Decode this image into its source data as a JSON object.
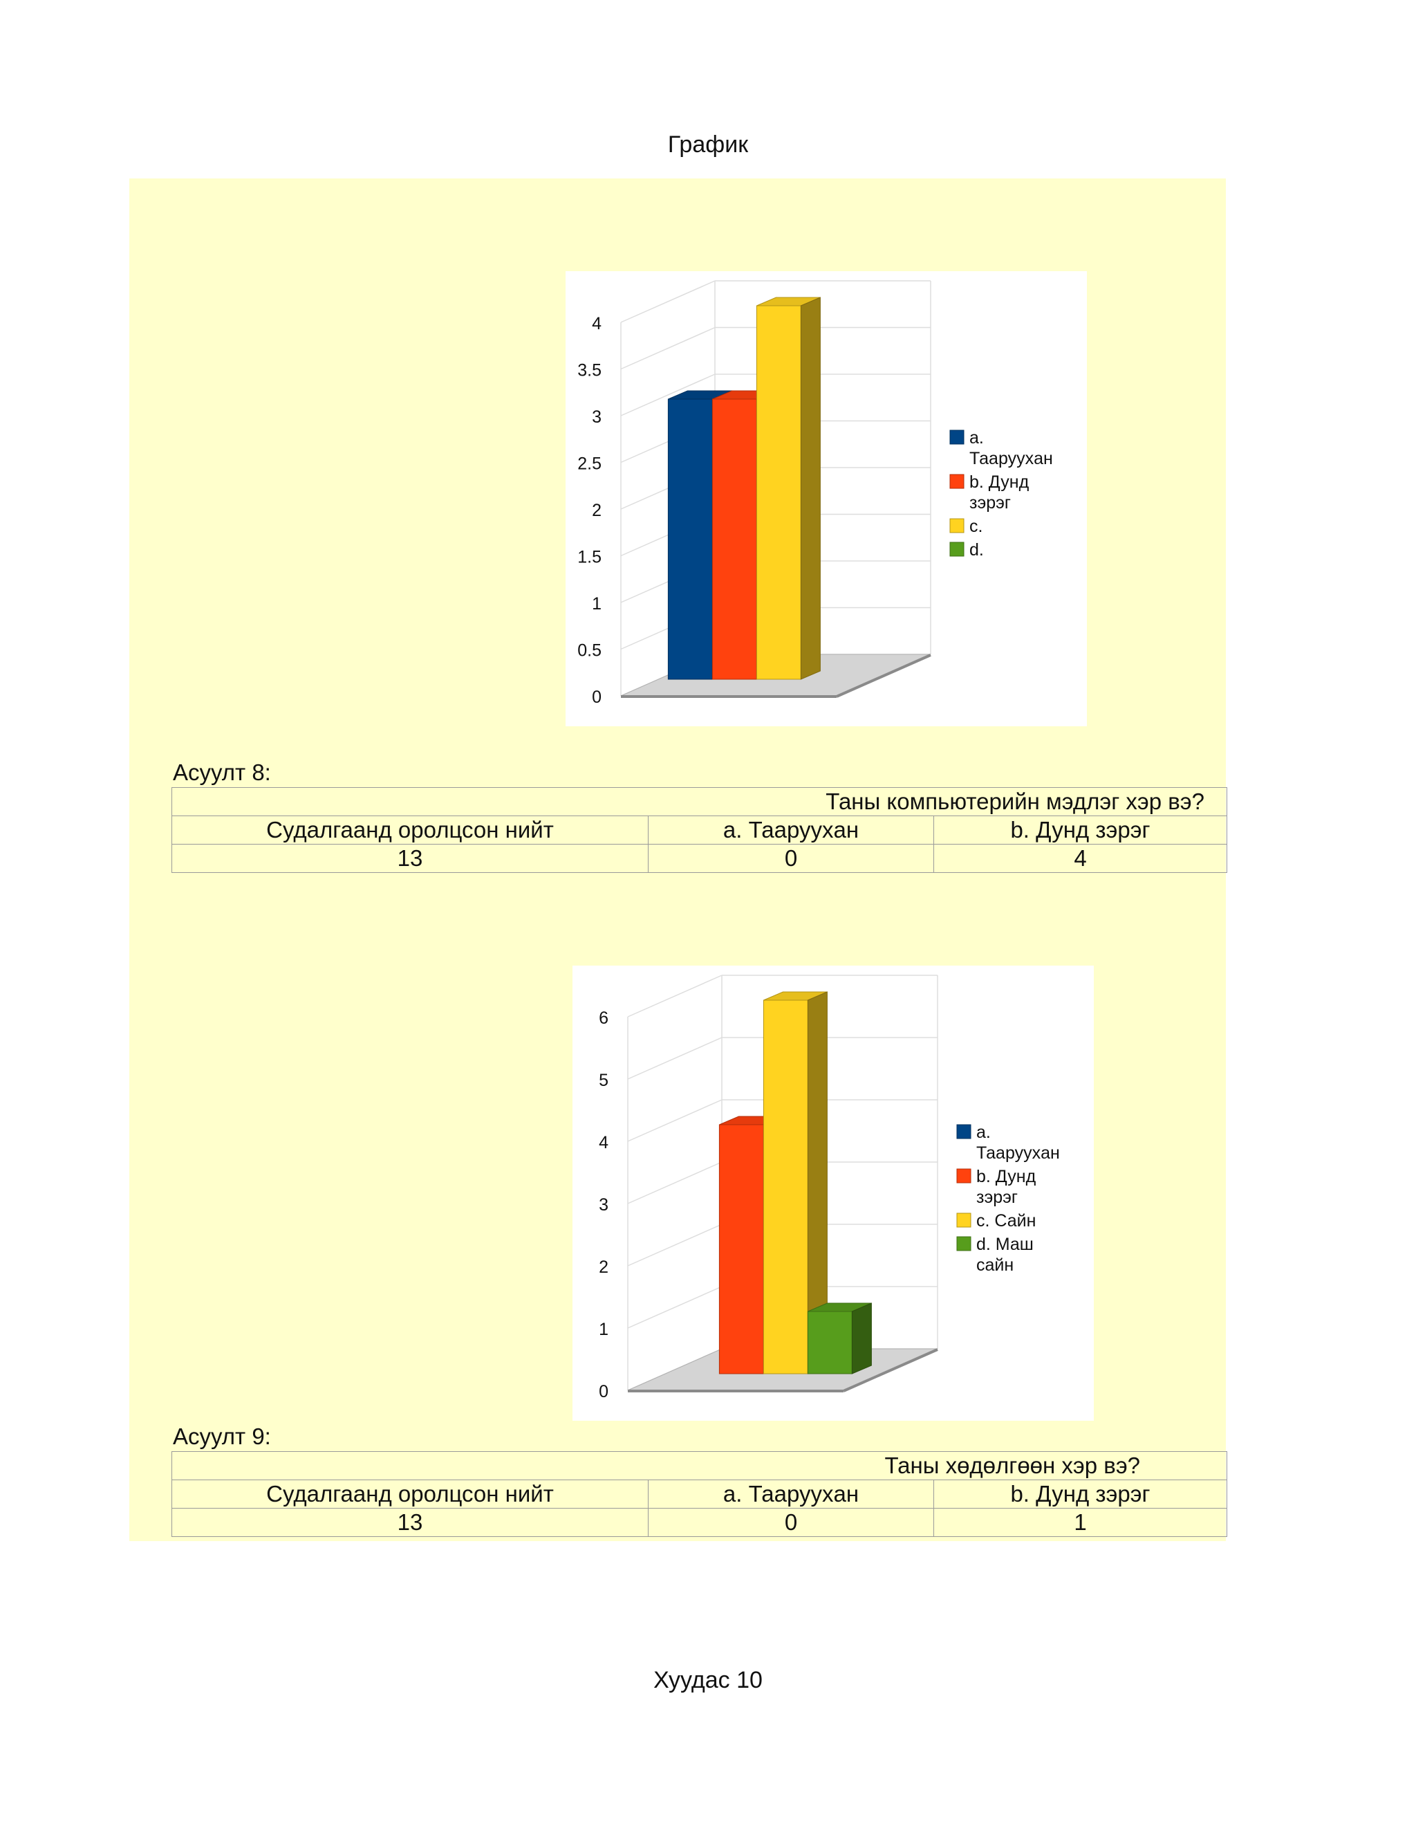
{
  "page": {
    "header": "График",
    "footer": "Хуудас 10"
  },
  "colors": {
    "a": "#004586",
    "b": "#ff420e",
    "c": "#ffd320",
    "d": "#579d1c",
    "background": "#ffffcc"
  },
  "chart_data": [
    {
      "type": "bar",
      "title": "",
      "ylim": [
        0,
        4
      ],
      "yticks": [
        "0",
        "0.5",
        "1",
        "1.5",
        "2",
        "2.5",
        "3",
        "3.5",
        "4"
      ],
      "grid": true,
      "legend_position": "right",
      "series": [
        {
          "name": "a. Таарууxан",
          "values": [
            3
          ]
        },
        {
          "name": "b. Дунд зэрэг",
          "values": [
            3
          ]
        },
        {
          "name": "c.",
          "values": [
            4
          ]
        },
        {
          "name": "d.",
          "values": [
            0
          ]
        }
      ]
    },
    {
      "type": "bar",
      "title": "",
      "ylim": [
        0,
        6
      ],
      "yticks": [
        "0",
        "1",
        "2",
        "3",
        "4",
        "5",
        "6"
      ],
      "grid": true,
      "legend_position": "right",
      "series": [
        {
          "name": "a. Таарууxан",
          "values": [
            0
          ]
        },
        {
          "name": "b. Дунд зэрэг",
          "values": [
            4
          ]
        },
        {
          "name": "c. Сайн",
          "values": [
            6
          ]
        },
        {
          "name": "d. Маш сайн",
          "values": [
            1
          ]
        }
      ]
    }
  ],
  "question8": {
    "label": "Асуулт 8:",
    "question": "Таны компьютерийн мэдлэг хэр вэ?",
    "headers": [
      "Судалгаанд оролцсон нийт",
      "a. Таарууxан",
      "b. Дунд зэрэг"
    ],
    "values": [
      "13",
      "0",
      "4"
    ]
  },
  "question9": {
    "label": "Асуулт 9:",
    "question": "Таны хөдөлгөөн хэр вэ?",
    "headers": [
      "Судалгаанд оролцсон нийт",
      "a. Таарууxан",
      "b. Дунд зэрэг"
    ],
    "values": [
      "13",
      "0",
      "1"
    ]
  }
}
